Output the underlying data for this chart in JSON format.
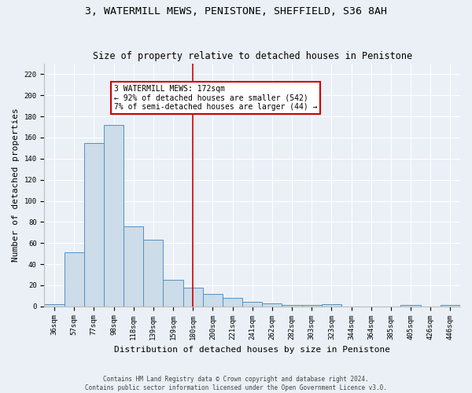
{
  "title1": "3, WATERMILL MEWS, PENISTONE, SHEFFIELD, S36 8AH",
  "title2": "Size of property relative to detached houses in Penistone",
  "xlabel": "Distribution of detached houses by size in Penistone",
  "ylabel": "Number of detached properties",
  "footer1": "Contains HM Land Registry data © Crown copyright and database right 2024.",
  "footer2": "Contains public sector information licensed under the Open Government Licence v3.0.",
  "categories": [
    "36sqm",
    "57sqm",
    "77sqm",
    "98sqm",
    "118sqm",
    "139sqm",
    "159sqm",
    "180sqm",
    "200sqm",
    "221sqm",
    "241sqm",
    "262sqm",
    "282sqm",
    "303sqm",
    "323sqm",
    "344sqm",
    "364sqm",
    "385sqm",
    "405sqm",
    "426sqm",
    "446sqm"
  ],
  "bar_values": [
    2,
    51,
    155,
    172,
    76,
    63,
    25,
    18,
    12,
    8,
    4,
    3,
    1,
    1,
    2,
    0,
    0,
    0,
    1,
    0,
    1
  ],
  "bar_color": "#ccdce8",
  "bar_edge_color": "#5590bf",
  "vline_x": 7,
  "annotation_text": "3 WATERMILL MEWS: 172sqm\n← 92% of detached houses are smaller (542)\n7% of semi-detached houses are larger (44) →",
  "annotation_box_color": "#ffffff",
  "annotation_box_edge": "#cc0000",
  "vline_color": "#cc0000",
  "ylim": [
    0,
    230
  ],
  "yticks": [
    0,
    20,
    40,
    60,
    80,
    100,
    120,
    140,
    160,
    180,
    200,
    220
  ],
  "background_color": "#eaf0f6",
  "plot_bg_color": "#eaf0f6",
  "grid_color": "#ffffff",
  "title_fontsize": 9.5,
  "subtitle_fontsize": 8.5,
  "axis_label_fontsize": 8,
  "tick_fontsize": 6.5,
  "annotation_fontsize": 7,
  "footer_fontsize": 5.5
}
